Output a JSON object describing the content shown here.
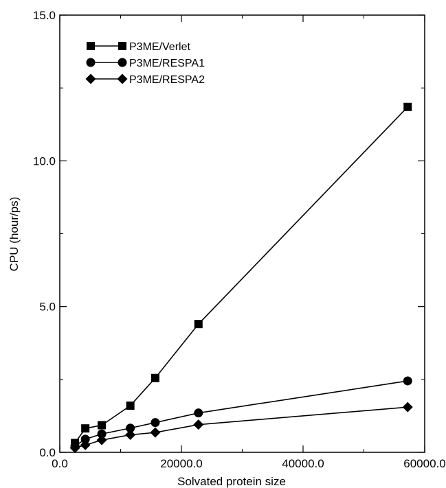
{
  "chart_data": {
    "type": "line",
    "title": "",
    "xlabel": "Solvated protein size",
    "ylabel": "CPU (hour/ps)",
    "xlim": [
      0,
      60000
    ],
    "ylim": [
      0,
      15
    ],
    "x_ticks": [
      0,
      20000,
      40000,
      60000
    ],
    "x_tick_labels": [
      "0.0",
      "20000.0",
      "40000.0",
      "60000.0"
    ],
    "y_ticks": [
      0,
      5,
      10,
      15
    ],
    "y_tick_labels": [
      "0.0",
      "5.0",
      "10.0",
      "15.0"
    ],
    "grid": false,
    "legend_position": "top-left",
    "x": [
      2500,
      4200,
      6900,
      11600,
      15700,
      22800,
      57200
    ],
    "series": [
      {
        "name": "P3ME/Verlet",
        "marker": "square",
        "color": "#000000",
        "values": [
          0.32,
          0.82,
          0.93,
          1.6,
          2.55,
          4.4,
          11.85
        ]
      },
      {
        "name": "P3ME/RESPA1",
        "marker": "circle",
        "color": "#000000",
        "values": [
          0.22,
          0.45,
          0.63,
          0.83,
          1.02,
          1.35,
          2.45
        ]
      },
      {
        "name": "P3ME/RESPA2",
        "marker": "diamond",
        "color": "#000000",
        "values": [
          0.15,
          0.25,
          0.42,
          0.6,
          0.68,
          0.95,
          1.55
        ]
      }
    ]
  }
}
